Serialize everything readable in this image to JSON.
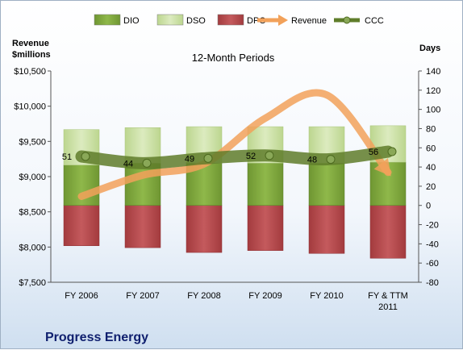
{
  "company": "Progress Energy",
  "chart_data": {
    "type": "bar",
    "subtitle": "12-Month Periods",
    "left_axis": {
      "label_line1": "Revenue",
      "label_line2": "$millions",
      "ticks": [
        "$7,500",
        "$8,000",
        "$8,500",
        "$9,000",
        "$9,500",
        "$10,000",
        "$10,500"
      ],
      "range": [
        7500,
        10500
      ]
    },
    "right_axis": {
      "label": "Days",
      "ticks": [
        "-80",
        "-60",
        "-40",
        "-20",
        "0",
        "20",
        "40",
        "60",
        "80",
        "100",
        "120",
        "140"
      ],
      "range": [
        -80,
        140
      ]
    },
    "categories": [
      [
        "FY 2006"
      ],
      [
        "FY 2007"
      ],
      [
        "FY 2008"
      ],
      [
        "FY 2009"
      ],
      [
        "FY 2010"
      ],
      [
        "FY & TTM",
        "2011"
      ]
    ],
    "legend_position": "top",
    "grid": false,
    "series": [
      {
        "name": "DIO",
        "kind": "stacked-bar-days",
        "values": [
          42,
          44,
          44,
          44,
          44,
          45
        ],
        "color": "#7aa13a"
      },
      {
        "name": "DSO",
        "kind": "stacked-bar-days",
        "values": [
          37,
          37,
          38,
          38,
          38,
          38
        ],
        "color": "#c8dea0"
      },
      {
        "name": "DPO",
        "kind": "negative-bar-days",
        "values": [
          -42,
          -44,
          -49,
          -47,
          -50,
          -55
        ],
        "color": "#b54548"
      },
      {
        "name": "Revenue",
        "kind": "line-left",
        "values": [
          8720,
          9020,
          9180,
          9830,
          10160,
          9060
        ],
        "color": "#f2a15a"
      },
      {
        "name": "CCC",
        "kind": "line-right",
        "values": [
          51,
          44,
          49,
          52,
          48,
          56
        ],
        "labels": [
          "51",
          "44",
          "49",
          "52",
          "48",
          "56"
        ],
        "color": "#5f7d2a"
      }
    ]
  }
}
